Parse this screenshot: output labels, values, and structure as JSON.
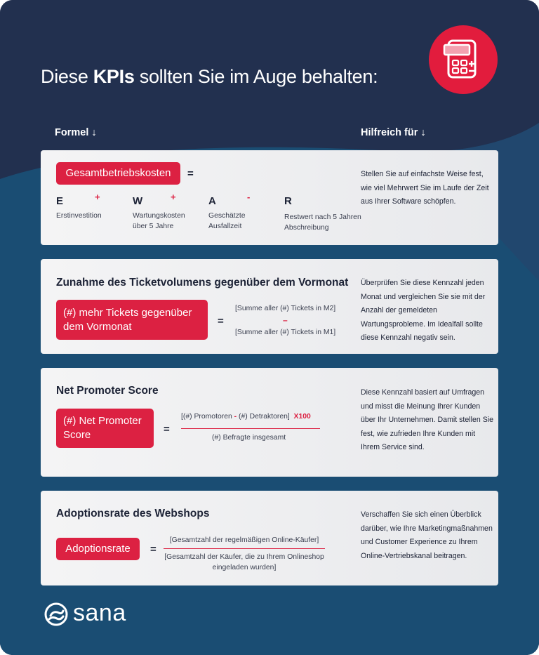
{
  "title": {
    "pre": "Diese ",
    "bold": "KPIs",
    "post": " sollten Sie im Auge behalten:"
  },
  "icon": "calculator-icon",
  "headers": {
    "left": "Formel ↓",
    "right": "Hilfreich für  ↓"
  },
  "colors": {
    "accent": "#dc2142",
    "navy": "#22304f",
    "blue": "#1a4d73"
  },
  "card1": {
    "pill": "Gesamtbetriebskosten",
    "eq": "=",
    "terms": [
      {
        "letter": "E",
        "op": "+",
        "label": "Erstinvestition"
      },
      {
        "letter": "W",
        "op": "+",
        "label": "Wartungskosten über 5 Jahre"
      },
      {
        "letter": "A",
        "op": "-",
        "label": "Geschätzte Ausfallzeit"
      },
      {
        "letter": "R",
        "op": "",
        "label": "Restwert nach 5 Jahren Abschreibung"
      }
    ],
    "desc": "Stellen Sie auf einfachste Weise fest, wie viel Mehrwert Sie im Laufe der Zeit aus Ihrer Software schöpfen."
  },
  "card2": {
    "title": "Zunahme des Ticketvolumens gegenüber dem Vormonat",
    "pill": "(#) mehr Tickets gegenüber dem Vormonat",
    "eq": "=",
    "top": "[Summe aller (#) Tickets in M2]",
    "op": "–",
    "bottom": "[Summe aller (#) Tickets in M1]",
    "desc": "Überprüfen Sie diese Kennzahl jeden Monat und vergleichen Sie sie mit der Anzahl der gemeldeten Wartungsprobleme. Im Idealfall sollte diese Kennzahl negativ sein."
  },
  "card3": {
    "title": "Net Promoter Score",
    "pill": "(#) Net Promoter Score",
    "eq": "=",
    "num_a": "[(#) Promotoren",
    "num_op": " - ",
    "num_b": "(#) Detraktoren]",
    "num_mult": "X100",
    "den": "(#) Befragte insgesamt",
    "desc": "Diese Kennzahl basiert auf Umfragen und misst die Meinung Ihrer Kunden über Ihr Unternehmen. Damit stellen Sie fest, wie zufrieden Ihre Kunden mit Ihrem Service sind."
  },
  "card4": {
    "title": "Adoptionsrate des Webshops",
    "pill": "Adoptionsrate",
    "eq": "=",
    "num": "[Gesamtzahl der regelmäßigen Online-Käufer]",
    "den": "[Gesamtzahl der Käufer, die zu Ihrem Onlineshop eingeladen wurden]",
    "desc": "Verschaffen Sie sich einen Überblick darüber, wie Ihre Marketingmaßnahmen und Customer Experience zu Ihrem Online-Vertriebskanal beitragen."
  },
  "logo": {
    "text": "sana",
    "icon": "sana-logo-icon"
  }
}
